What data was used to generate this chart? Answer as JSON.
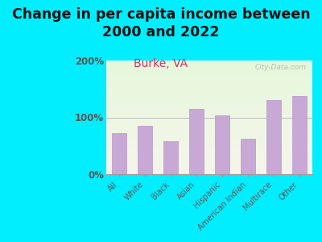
{
  "title": "Change in per capita income between\n2000 and 2022",
  "subtitle": "Burke, VA",
  "categories": [
    "All",
    "White",
    "Black",
    "Asian",
    "Hispanic",
    "American Indian",
    "Multirace",
    "Other"
  ],
  "values": [
    73,
    85,
    58,
    115,
    103,
    62,
    130,
    138
  ],
  "bar_color": "#c8a8d4",
  "bar_edge_color": "#b898c8",
  "background_outer": "#00eeff",
  "title_color": "#111111",
  "subtitle_color": "#cc3366",
  "tick_label_color": "#555555",
  "watermark": "City-Data.com",
  "ylim": [
    0,
    200
  ],
  "yticks": [
    0,
    100,
    200
  ],
  "ytick_labels": [
    "0%",
    "100%",
    "200%"
  ],
  "title_fontsize": 12.5,
  "subtitle_fontsize": 10
}
